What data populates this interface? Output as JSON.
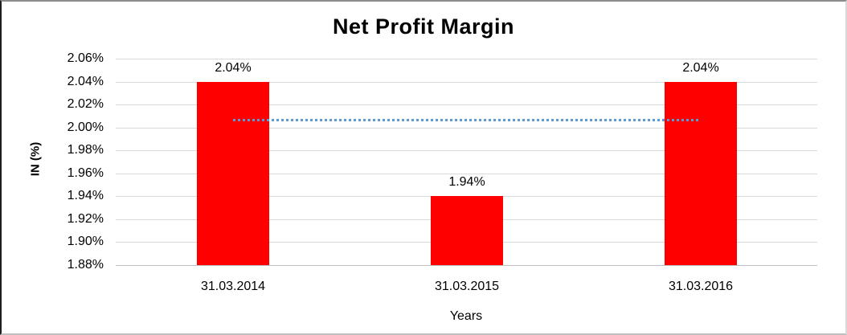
{
  "chart_data": {
    "type": "bar",
    "title": "Net Profit Margin",
    "ylabel": "IN (%)",
    "xlabel": "Years",
    "categories": [
      "31.03.2014",
      "31.03.2015",
      "31.03.2016"
    ],
    "values": [
      2.04,
      1.94,
      2.04
    ],
    "data_labels": [
      "2.04%",
      "1.94%",
      "2.04%"
    ],
    "ylim": [
      1.88,
      2.06
    ],
    "ytick_step": 0.02,
    "ytick_labels": [
      "2.06%",
      "2.04%",
      "2.02%",
      "2.00%",
      "1.98%",
      "1.96%",
      "1.94%",
      "1.92%",
      "1.90%",
      "1.88%"
    ],
    "grid": true,
    "legend": false,
    "trendline": {
      "style": "dotted",
      "value": 2.007,
      "span": "first-bar-center-to-last-bar-center"
    },
    "colors": {
      "bar": "#FF0000",
      "gridline": "#D9D9D9",
      "axis_line": "#BFBFBF",
      "trendline": "#5B9BD5",
      "text": "#000000"
    }
  }
}
